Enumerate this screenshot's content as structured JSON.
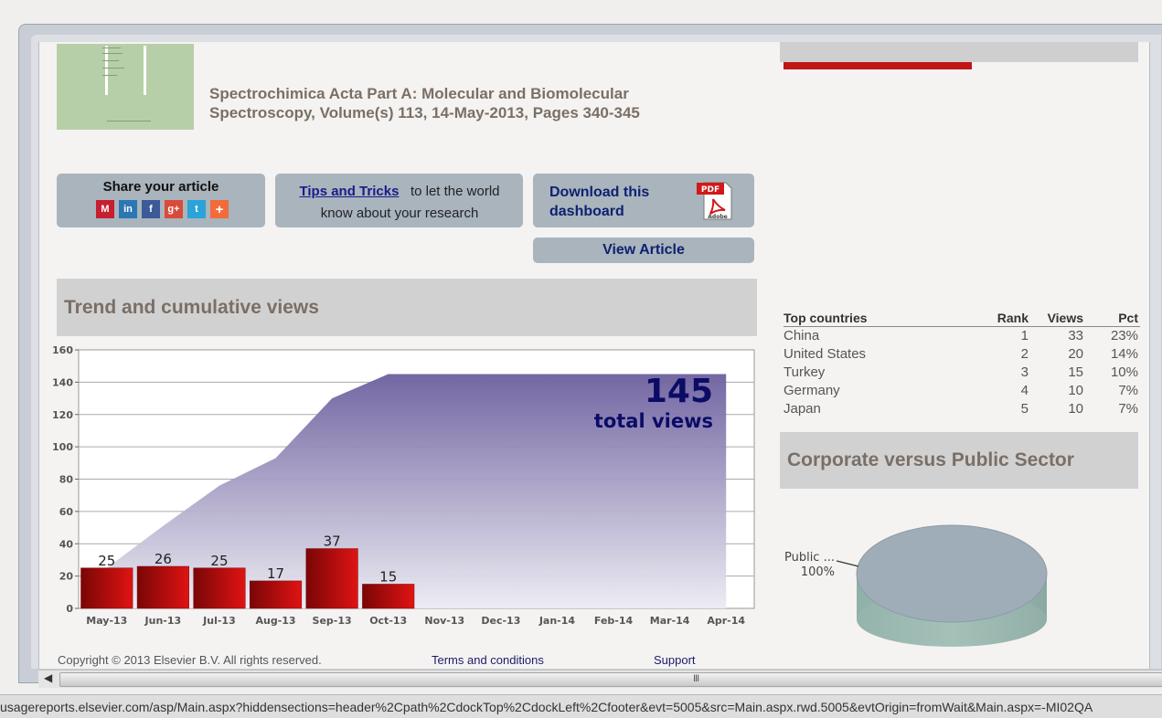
{
  "article": {
    "title_line1": "Spectrochimica Acta Part A: Molecular and Biomolecular",
    "title_line2": "Spectroscopy, Volume(s) 113, 14-May-2013, Pages 340-345"
  },
  "share": {
    "label": "Share your article",
    "icons": [
      "mendeley-icon",
      "linkedin-icon",
      "facebook-icon",
      "google-plus-icon",
      "twitter-icon",
      "addthis-icon"
    ]
  },
  "tips": {
    "link": "Tips and Tricks",
    "text_line1": "to let the world",
    "text_line2": "know about your research"
  },
  "download": {
    "label_line1": "Download this",
    "label_line2": "dashboard",
    "pdf_badge": "PDF",
    "pdf_brand": "Adobe"
  },
  "view_article": "View Article",
  "trend": {
    "title": "Trend and cumulative views",
    "total_number": "145",
    "total_label": "total views"
  },
  "chart_data": {
    "type": "bar",
    "categories": [
      "May-13",
      "Jun-13",
      "Jul-13",
      "Aug-13",
      "Sep-13",
      "Oct-13",
      "Nov-13",
      "Dec-13",
      "Jan-14",
      "Feb-14",
      "Mar-14",
      "Apr-14"
    ],
    "series": [
      {
        "type": "bar",
        "values": [
          25,
          26,
          25,
          17,
          37,
          15,
          null,
          null,
          null,
          null,
          null,
          null
        ],
        "color": "#d40d0d"
      },
      {
        "type": "area",
        "values": [
          25,
          51,
          76,
          93,
          130,
          145,
          145,
          145,
          145,
          145,
          145,
          145
        ],
        "color": "#7a70a8"
      }
    ],
    "ylim": [
      0,
      160
    ],
    "yticks": [
      0,
      20,
      40,
      60,
      80,
      100,
      120,
      140,
      160
    ],
    "grid": true
  },
  "countries": {
    "headers": {
      "name": "Top countries",
      "rank": "Rank",
      "views": "Views",
      "pct": "Pct"
    },
    "rows": [
      {
        "name": "China",
        "rank": "1",
        "views": "33",
        "pct": "23%"
      },
      {
        "name": "United States",
        "rank": "2",
        "views": "20",
        "pct": "14%"
      },
      {
        "name": "Turkey",
        "rank": "3",
        "views": "15",
        "pct": "10%"
      },
      {
        "name": "Germany",
        "rank": "4",
        "views": "10",
        "pct": "7%"
      },
      {
        "name": "Japan",
        "rank": "5",
        "views": "10",
        "pct": "7%"
      }
    ]
  },
  "sector": {
    "title": "Corporate versus Public Sector",
    "pie_label": "Public ...",
    "pie_pct": "100%",
    "pie_value": 100
  },
  "footer": {
    "copyright": "Copyright © 2013 Elsevier B.V. All rights reserved.",
    "terms": "Terms and conditions",
    "support": "Support"
  },
  "scrollbar": {
    "grip": "III"
  },
  "status_bar": {
    "url": "usagereports.elsevier.com/asp/Main.aspx?hiddensections=header%2Cpath%2CdockTop%2CdockLeft%2Cfooter&evt=5005&src=Main.aspx.rwd.5005&evtOrigin=fromWait&Main.aspx=-MI02QA"
  }
}
